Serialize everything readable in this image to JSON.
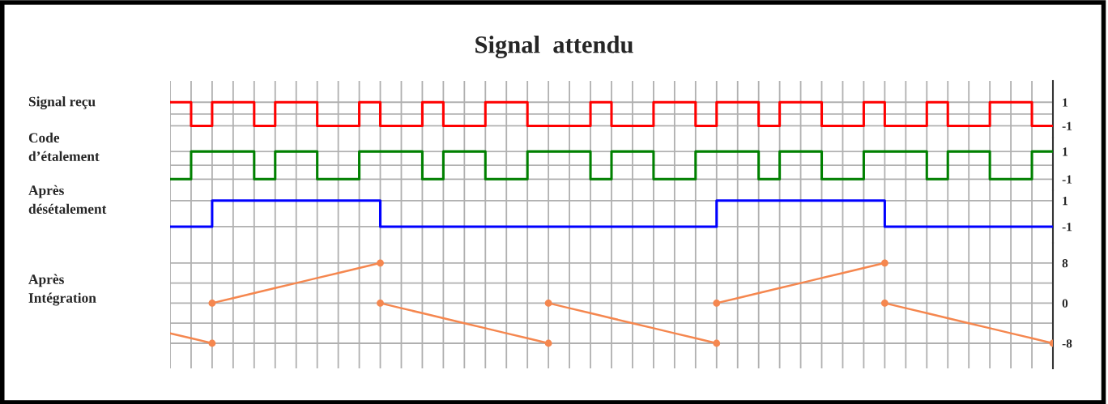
{
  "chart_data": [
    {
      "type": "step",
      "title": "Signal  attendu",
      "ylabel": "Signal reçu",
      "categories": [
        null,
        null,
        null,
        null,
        null,
        null,
        null,
        null,
        null,
        null,
        null,
        null,
        null,
        null,
        null,
        null,
        null,
        null,
        null,
        null,
        null,
        null,
        null,
        null,
        null,
        null,
        null,
        null,
        null,
        null,
        null,
        null,
        null,
        null,
        null,
        null,
        null,
        null,
        null,
        null,
        null,
        null,
        null
      ],
      "series": [
        {
          "color": "#ff0000",
          "values": [
            1,
            -1,
            1,
            1,
            -1,
            1,
            1,
            -1,
            -1,
            1,
            -1,
            -1,
            1,
            -1,
            -1,
            1,
            1,
            -1,
            -1,
            -1,
            1,
            -1,
            -1,
            1,
            1,
            -1,
            1,
            1,
            -1,
            1,
            1,
            -1,
            -1,
            1,
            -1,
            -1,
            1,
            -1,
            -1,
            1,
            1,
            -1,
            -1
          ]
        }
      ],
      "ylim": [
        -2,
        2.8
      ],
      "yticks": [
        -1,
        {
          "value": 0,
          "label": null
        },
        1
      ],
      "grid": true,
      "tick_labels": "y"
    },
    {
      "type": "step",
      "ylabel": "Code\nd’étalement",
      "categories": [
        null,
        null,
        null,
        null,
        null,
        null,
        null,
        null,
        null,
        null,
        null,
        null,
        null,
        null,
        null,
        null,
        null,
        null,
        null,
        null,
        null,
        null,
        null,
        null,
        null,
        null,
        null,
        null,
        null,
        null,
        null,
        null,
        null,
        null,
        null,
        null,
        null,
        null,
        null,
        null,
        null,
        null,
        null
      ],
      "series": [
        {
          "color": "#008000",
          "values": [
            -1,
            1,
            1,
            1,
            -1,
            1,
            1,
            -1,
            -1,
            1,
            1,
            1,
            -1,
            1,
            1,
            -1,
            -1,
            1,
            1,
            1,
            -1,
            1,
            1,
            -1,
            -1,
            1,
            1,
            1,
            -1,
            1,
            1,
            -1,
            -1,
            1,
            1,
            1,
            -1,
            1,
            1,
            -1,
            -1,
            1,
            1
          ]
        }
      ],
      "ylim": [
        -1.8,
        2
      ],
      "yticks": [
        -1,
        {
          "value": 0,
          "label": null
        },
        1
      ],
      "grid": true,
      "tick_labels": "y"
    },
    {
      "type": "step",
      "ylabel": "Après\ndésétalement",
      "categories": [
        null,
        null,
        null,
        null,
        null,
        null,
        null,
        null,
        null,
        null,
        null,
        null,
        null,
        null,
        null,
        null,
        null,
        null,
        null,
        null,
        null,
        null,
        null,
        null,
        null,
        null,
        null,
        null,
        null,
        null,
        null,
        null,
        null,
        null,
        null,
        null,
        null,
        null,
        null,
        null,
        null,
        null,
        null
      ],
      "series": [
        {
          "color": "#0000ff",
          "values": [
            -1,
            -1,
            1,
            1,
            1,
            1,
            1,
            1,
            1,
            1,
            -1,
            -1,
            -1,
            -1,
            -1,
            -1,
            -1,
            -1,
            -1,
            -1,
            -1,
            -1,
            -1,
            -1,
            -1,
            -1,
            1,
            1,
            1,
            1,
            1,
            1,
            1,
            1,
            -1,
            -1,
            -1,
            -1,
            -1,
            -1,
            -1,
            -1,
            -1
          ]
        }
      ],
      "ylim": [
        -2.25,
        1.8
      ],
      "yticks": [
        -1,
        1
      ],
      "grid": true,
      "tick_labels": "y"
    },
    {
      "type": "line",
      "ylabel": "Après\nIntégration",
      "categories": [
        null,
        null,
        null,
        null,
        null,
        null,
        null,
        null,
        null,
        null,
        null,
        null,
        null,
        null,
        null,
        null,
        null,
        null,
        null,
        null,
        null,
        null,
        null,
        null,
        null,
        null,
        null,
        null,
        null,
        null,
        null,
        null,
        null,
        null,
        null,
        null,
        null,
        null,
        null,
        null,
        null,
        null,
        null
      ],
      "series": [
        {
          "color": "#f5874f",
          "values": [
            null,
            null,
            0,
            1,
            2,
            3,
            4,
            5,
            6,
            7,
            8,
            null,
            null,
            null,
            null,
            null,
            null,
            null,
            0,
            -1,
            -2,
            -3,
            -4,
            -5,
            -6,
            -7,
            -8,
            null,
            null,
            null,
            null,
            null,
            null,
            null,
            0,
            -1,
            -2,
            -3,
            -4,
            -5,
            -6,
            -7,
            -8
          ]
        },
        {
          "color": "#f5874f",
          "values": [
            -6,
            -7,
            -8,
            null,
            null,
            null,
            null,
            null,
            null,
            null,
            0,
            -1,
            -2,
            -3,
            -4,
            -5,
            -6,
            -7,
            -8,
            null,
            null,
            null,
            null,
            null,
            null,
            null,
            0,
            1,
            2,
            3,
            4,
            5,
            6,
            7,
            8,
            null,
            null,
            null,
            null,
            null,
            null,
            null,
            null
          ]
        },
        {
          "type": "scatter",
          "color": "#f5874f",
          "values": [
            null,
            null,
            0,
            null,
            null,
            null,
            null,
            null,
            null,
            null,
            0,
            null,
            null,
            null,
            null,
            null,
            null,
            null,
            0,
            null,
            null,
            null,
            null,
            null,
            null,
            null,
            0,
            null,
            null,
            null,
            null,
            null,
            null,
            null,
            0,
            null,
            null,
            null,
            null,
            null,
            null,
            null,
            null
          ]
        },
        {
          "type": "scatter",
          "color": "#f5874f",
          "values": [
            null,
            null,
            -8,
            null,
            null,
            null,
            null,
            null,
            null,
            null,
            8,
            null,
            null,
            null,
            null,
            null,
            null,
            null,
            -8,
            null,
            null,
            null,
            null,
            null,
            null,
            null,
            -8,
            null,
            null,
            null,
            null,
            null,
            null,
            null,
            8,
            null,
            null,
            null,
            null,
            null,
            null,
            null,
            -8
          ]
        }
      ],
      "ylim": [
        -13,
        12
      ],
      "yticks": [
        -8,
        {
          "value": -4,
          "label": null
        },
        0,
        {
          "value": 4,
          "label": null
        },
        8
      ],
      "grid": true,
      "tick_labels": "y"
    }
  ]
}
